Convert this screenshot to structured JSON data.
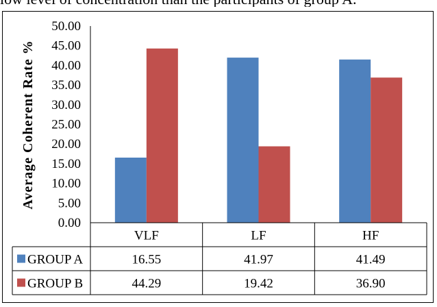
{
  "header_text": "low level of concentration than the participants of group A.",
  "chart_data": {
    "type": "bar",
    "categories": [
      "VLF",
      "LF",
      "HF"
    ],
    "series": [
      {
        "name": "GROUP A",
        "values": [
          16.55,
          41.97,
          41.49
        ],
        "labels": [
          "16.55",
          "41.97",
          "41.49"
        ],
        "color": "#4f81bd"
      },
      {
        "name": "GROUP B",
        "values": [
          44.29,
          19.42,
          36.9
        ],
        "labels": [
          "44.29",
          "19.42",
          "36.90"
        ],
        "color": "#c0504d"
      }
    ],
    "title": "",
    "xlabel": "",
    "ylabel": "Average Coherent Rate %",
    "ylim": [
      0,
      50
    ],
    "yticks": [
      "0.00",
      "5.00",
      "10.00",
      "15.00",
      "20.00",
      "25.00",
      "30.00",
      "35.00",
      "40.00",
      "45.00",
      "50.00"
    ],
    "grid": false,
    "legend": "data-table"
  }
}
